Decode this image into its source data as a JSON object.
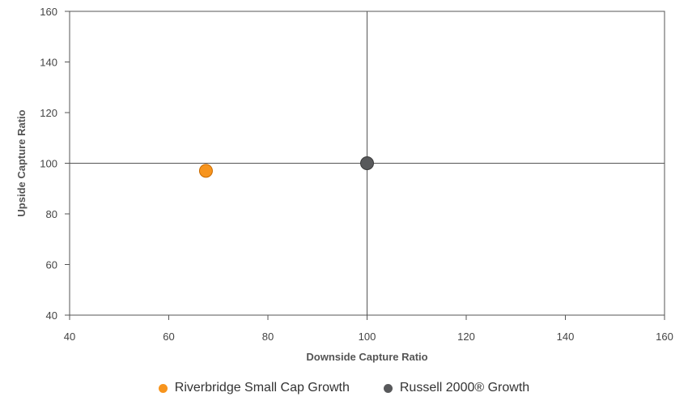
{
  "chart_data": {
    "type": "scatter",
    "title": "",
    "xlabel": "Downside Capture Ratio",
    "ylabel": "Upside Capture Ratio",
    "xlim": [
      40,
      160
    ],
    "ylim": [
      40,
      160
    ],
    "xticks": [
      "40",
      "60",
      "80",
      "100",
      "120",
      "140",
      "160"
    ],
    "yticks": [
      "40",
      "60",
      "80",
      "100",
      "120",
      "140",
      "160"
    ],
    "reference_lines": {
      "x": 100,
      "y": 100
    },
    "grid": false,
    "legend_position": "bottom-center",
    "series": [
      {
        "name": "Riverbridge Small Cap Growth",
        "color": "#F7941D",
        "points": [
          {
            "x": 67.5,
            "y": 97
          }
        ]
      },
      {
        "name": "Russell 2000® Growth",
        "color": "#58595B",
        "points": [
          {
            "x": 100,
            "y": 100
          }
        ]
      }
    ]
  }
}
